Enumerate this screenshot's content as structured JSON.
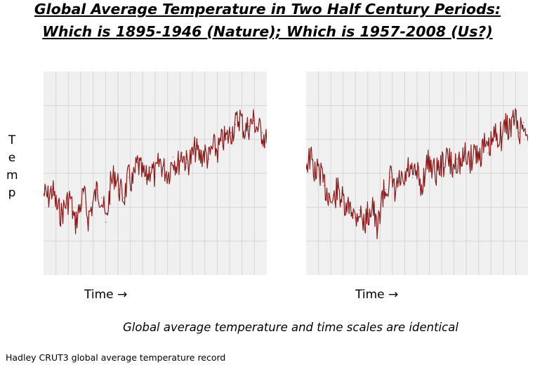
{
  "title_line1": "Global Average Temperature in Two Half Century Periods:",
  "title_line2": "Which is 1895-1946 (Nature); Which is 1957-2008 (Us?)",
  "y_axis_letters": [
    "T",
    "e",
    "m",
    "p"
  ],
  "footnote": "Global average temperature and time scales are identical",
  "source": "Hadley CRUT3 global average temperature record",
  "colors": {
    "line": "#8b1a1a",
    "panel_bg": "#f0f0f0",
    "grid": "#d6d6d6"
  },
  "chart_data": [
    {
      "type": "line",
      "xlabel": "Time →",
      "ylabel": "Temp",
      "grid": true,
      "ylim": [
        0,
        100
      ],
      "x": [
        0,
        2,
        4,
        6,
        8,
        10,
        12,
        14,
        16,
        18,
        20,
        22,
        24,
        26,
        28,
        30,
        32,
        34,
        36,
        38,
        40,
        42,
        44,
        46,
        48,
        50,
        52,
        54,
        56,
        58,
        60,
        62,
        64,
        66,
        68,
        70,
        72,
        74,
        76,
        78,
        80,
        82,
        84,
        86,
        88,
        90,
        92,
        94,
        96,
        98,
        100
      ],
      "series": [
        {
          "values": [
            40,
            38,
            42,
            33,
            30,
            35,
            38,
            25,
            32,
            40,
            28,
            35,
            42,
            38,
            26,
            44,
            50,
            42,
            38,
            48,
            45,
            55,
            50,
            47,
            53,
            48,
            56,
            52,
            50,
            58,
            54,
            60,
            55,
            57,
            62,
            58,
            60,
            57,
            63,
            61,
            66,
            67,
            70,
            74,
            78,
            71,
            73,
            76,
            72,
            70,
            65
          ]
        }
      ]
    },
    {
      "type": "line",
      "xlabel": "Time →",
      "ylabel": "Temp",
      "grid": true,
      "ylim": [
        0,
        100
      ],
      "x": [
        0,
        2,
        4,
        6,
        8,
        10,
        12,
        14,
        16,
        18,
        20,
        22,
        24,
        26,
        28,
        30,
        32,
        34,
        36,
        38,
        40,
        42,
        44,
        46,
        48,
        50,
        52,
        54,
        56,
        58,
        60,
        62,
        64,
        66,
        68,
        70,
        72,
        74,
        76,
        78,
        80,
        82,
        84,
        86,
        88,
        90,
        92,
        94,
        96,
        98,
        100
      ],
      "series": [
        {
          "values": [
            55,
            58,
            50,
            52,
            44,
            40,
            35,
            42,
            38,
            30,
            36,
            28,
            32,
            25,
            30,
            35,
            20,
            38,
            42,
            48,
            40,
            46,
            44,
            52,
            48,
            50,
            42,
            54,
            56,
            50,
            53,
            55,
            58,
            52,
            57,
            54,
            60,
            56,
            62,
            58,
            64,
            60,
            66,
            70,
            68,
            74,
            72,
            78,
            70,
            75,
            66
          ]
        }
      ]
    }
  ]
}
